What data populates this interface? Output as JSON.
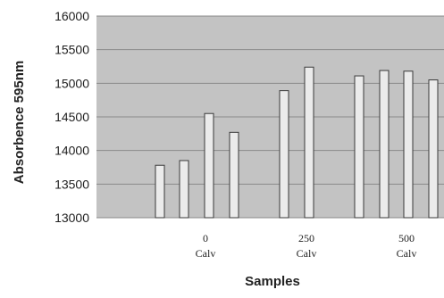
{
  "chart_data": {
    "type": "bar",
    "xlabel": "Samples",
    "ylabel": "Absorbence 595nm",
    "ylim": [
      13000,
      16000
    ],
    "yticks": [
      "13000",
      "13500",
      "14000",
      "14500",
      "15000",
      "15500",
      "16000"
    ],
    "category_groups": [
      {
        "line1": "0",
        "line2": "Calv"
      },
      {
        "line1": "250",
        "line2": "Calv"
      },
      {
        "line1": "500",
        "line2": "Calv"
      }
    ],
    "values": [
      13780,
      13850,
      14550,
      14270,
      14890,
      15240,
      15110,
      15190,
      15180,
      15050
    ],
    "grid": true,
    "legend": "none",
    "colors": {
      "plot_background": "#c3c3c3",
      "bar_fill": "#ebebeb",
      "bar_stroke": "#3a3a3a",
      "gridline": "#8a8a8a"
    }
  }
}
